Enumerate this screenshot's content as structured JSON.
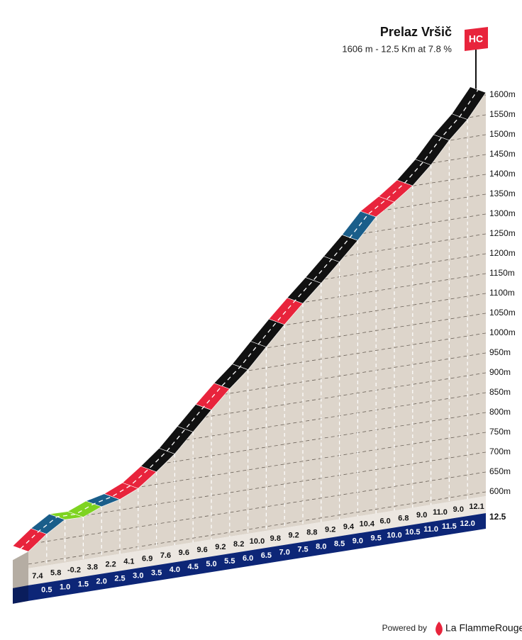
{
  "header": {
    "title": "Prelaz Vršič",
    "subtitle": "1606 m - 12.5 Km at 7.8 %",
    "category": "HC"
  },
  "chart_data": {
    "type": "climb-profile",
    "end_elevation": 1606,
    "values": [
      7.4,
      5.8,
      -0.2,
      3.8,
      2.2,
      4.1,
      6.9,
      7.6,
      9.6,
      9.6,
      9.2,
      8.2,
      10.0,
      9.8,
      9.2,
      8.8,
      9.2,
      9.4,
      10.4,
      6.0,
      6.8,
      9.0,
      11.0,
      9.0,
      12.1
    ],
    "value_labels": [
      "7.4",
      "5.8",
      "-0.2",
      "3.8",
      "2.2",
      "4.1",
      "6.9",
      "7.6",
      "9.6",
      "9.6",
      "9.2",
      "8.2",
      "10.0",
      "9.8",
      "9.2",
      "8.8",
      "9.2",
      "9.4",
      "10.4",
      "6.0",
      "6.8",
      "9.0",
      "11.0",
      "9.0",
      "12.1"
    ],
    "colors": [
      "#e8243c",
      "#1a5e8a",
      "#7ed321",
      "#7ed321",
      "#1a5e8a",
      "#e8243c",
      "#e8243c",
      "#111111",
      "#111111",
      "#111111",
      "#e8243c",
      "#111111",
      "#111111",
      "#111111",
      "#e8243c",
      "#111111",
      "#111111",
      "#111111",
      "#1a5e8a",
      "#e8243c",
      "#e8243c",
      "#111111",
      "#111111",
      "#111111",
      "#111111"
    ],
    "xlim": [
      0,
      12.5
    ],
    "xticks": [
      0.5,
      {
        "value": 1,
        "label": "1.0"
      },
      1.5,
      {
        "value": 2,
        "label": "2.0"
      },
      2.5,
      {
        "value": 3,
        "label": "3.0"
      },
      3.5,
      {
        "value": 4,
        "label": "4.0"
      },
      4.5,
      {
        "value": 5,
        "label": "5.0"
      },
      5.5,
      {
        "value": 6,
        "label": "6.0"
      },
      6.5,
      {
        "value": 7,
        "label": "7.0"
      },
      7.5,
      {
        "value": 8,
        "label": "8.0"
      },
      8.5,
      {
        "value": 9,
        "label": "9.0"
      },
      9.5,
      {
        "value": 10,
        "label": "10.0"
      },
      10.5,
      {
        "value": 11,
        "label": "11.0"
      },
      11.5,
      {
        "value": 12,
        "label": "12.0"
      },
      12.5
    ],
    "ylim": [
      600,
      1600
    ],
    "yticks": [
      {
        "value": 600,
        "label": "600m"
      },
      {
        "value": 650,
        "label": "650m"
      },
      {
        "value": 700,
        "label": "700m"
      },
      {
        "value": 750,
        "label": "750m"
      },
      {
        "value": 800,
        "label": "800m"
      },
      {
        "value": 850,
        "label": "850m"
      },
      {
        "value": 900,
        "label": "900m"
      },
      {
        "value": 950,
        "label": "950m"
      },
      {
        "value": 1000,
        "label": "1000m"
      },
      {
        "value": 1050,
        "label": "1050m"
      },
      {
        "value": 1100,
        "label": "1100m"
      },
      {
        "value": 1150,
        "label": "1150m"
      },
      {
        "value": 1200,
        "label": "1200m"
      },
      {
        "value": 1250,
        "label": "1250m"
      },
      {
        "value": 1300,
        "label": "1300m"
      },
      {
        "value": 1350,
        "label": "1350m"
      },
      {
        "value": 1400,
        "label": "1400m"
      },
      {
        "value": 1450,
        "label": "1450m"
      },
      {
        "value": 1500,
        "label": "1500m"
      },
      {
        "value": 1550,
        "label": "1550m"
      },
      {
        "value": 1600,
        "label": "1600m"
      }
    ]
  },
  "footer": {
    "powered_by": "Powered by",
    "brand": "La FlammeRouge"
  }
}
